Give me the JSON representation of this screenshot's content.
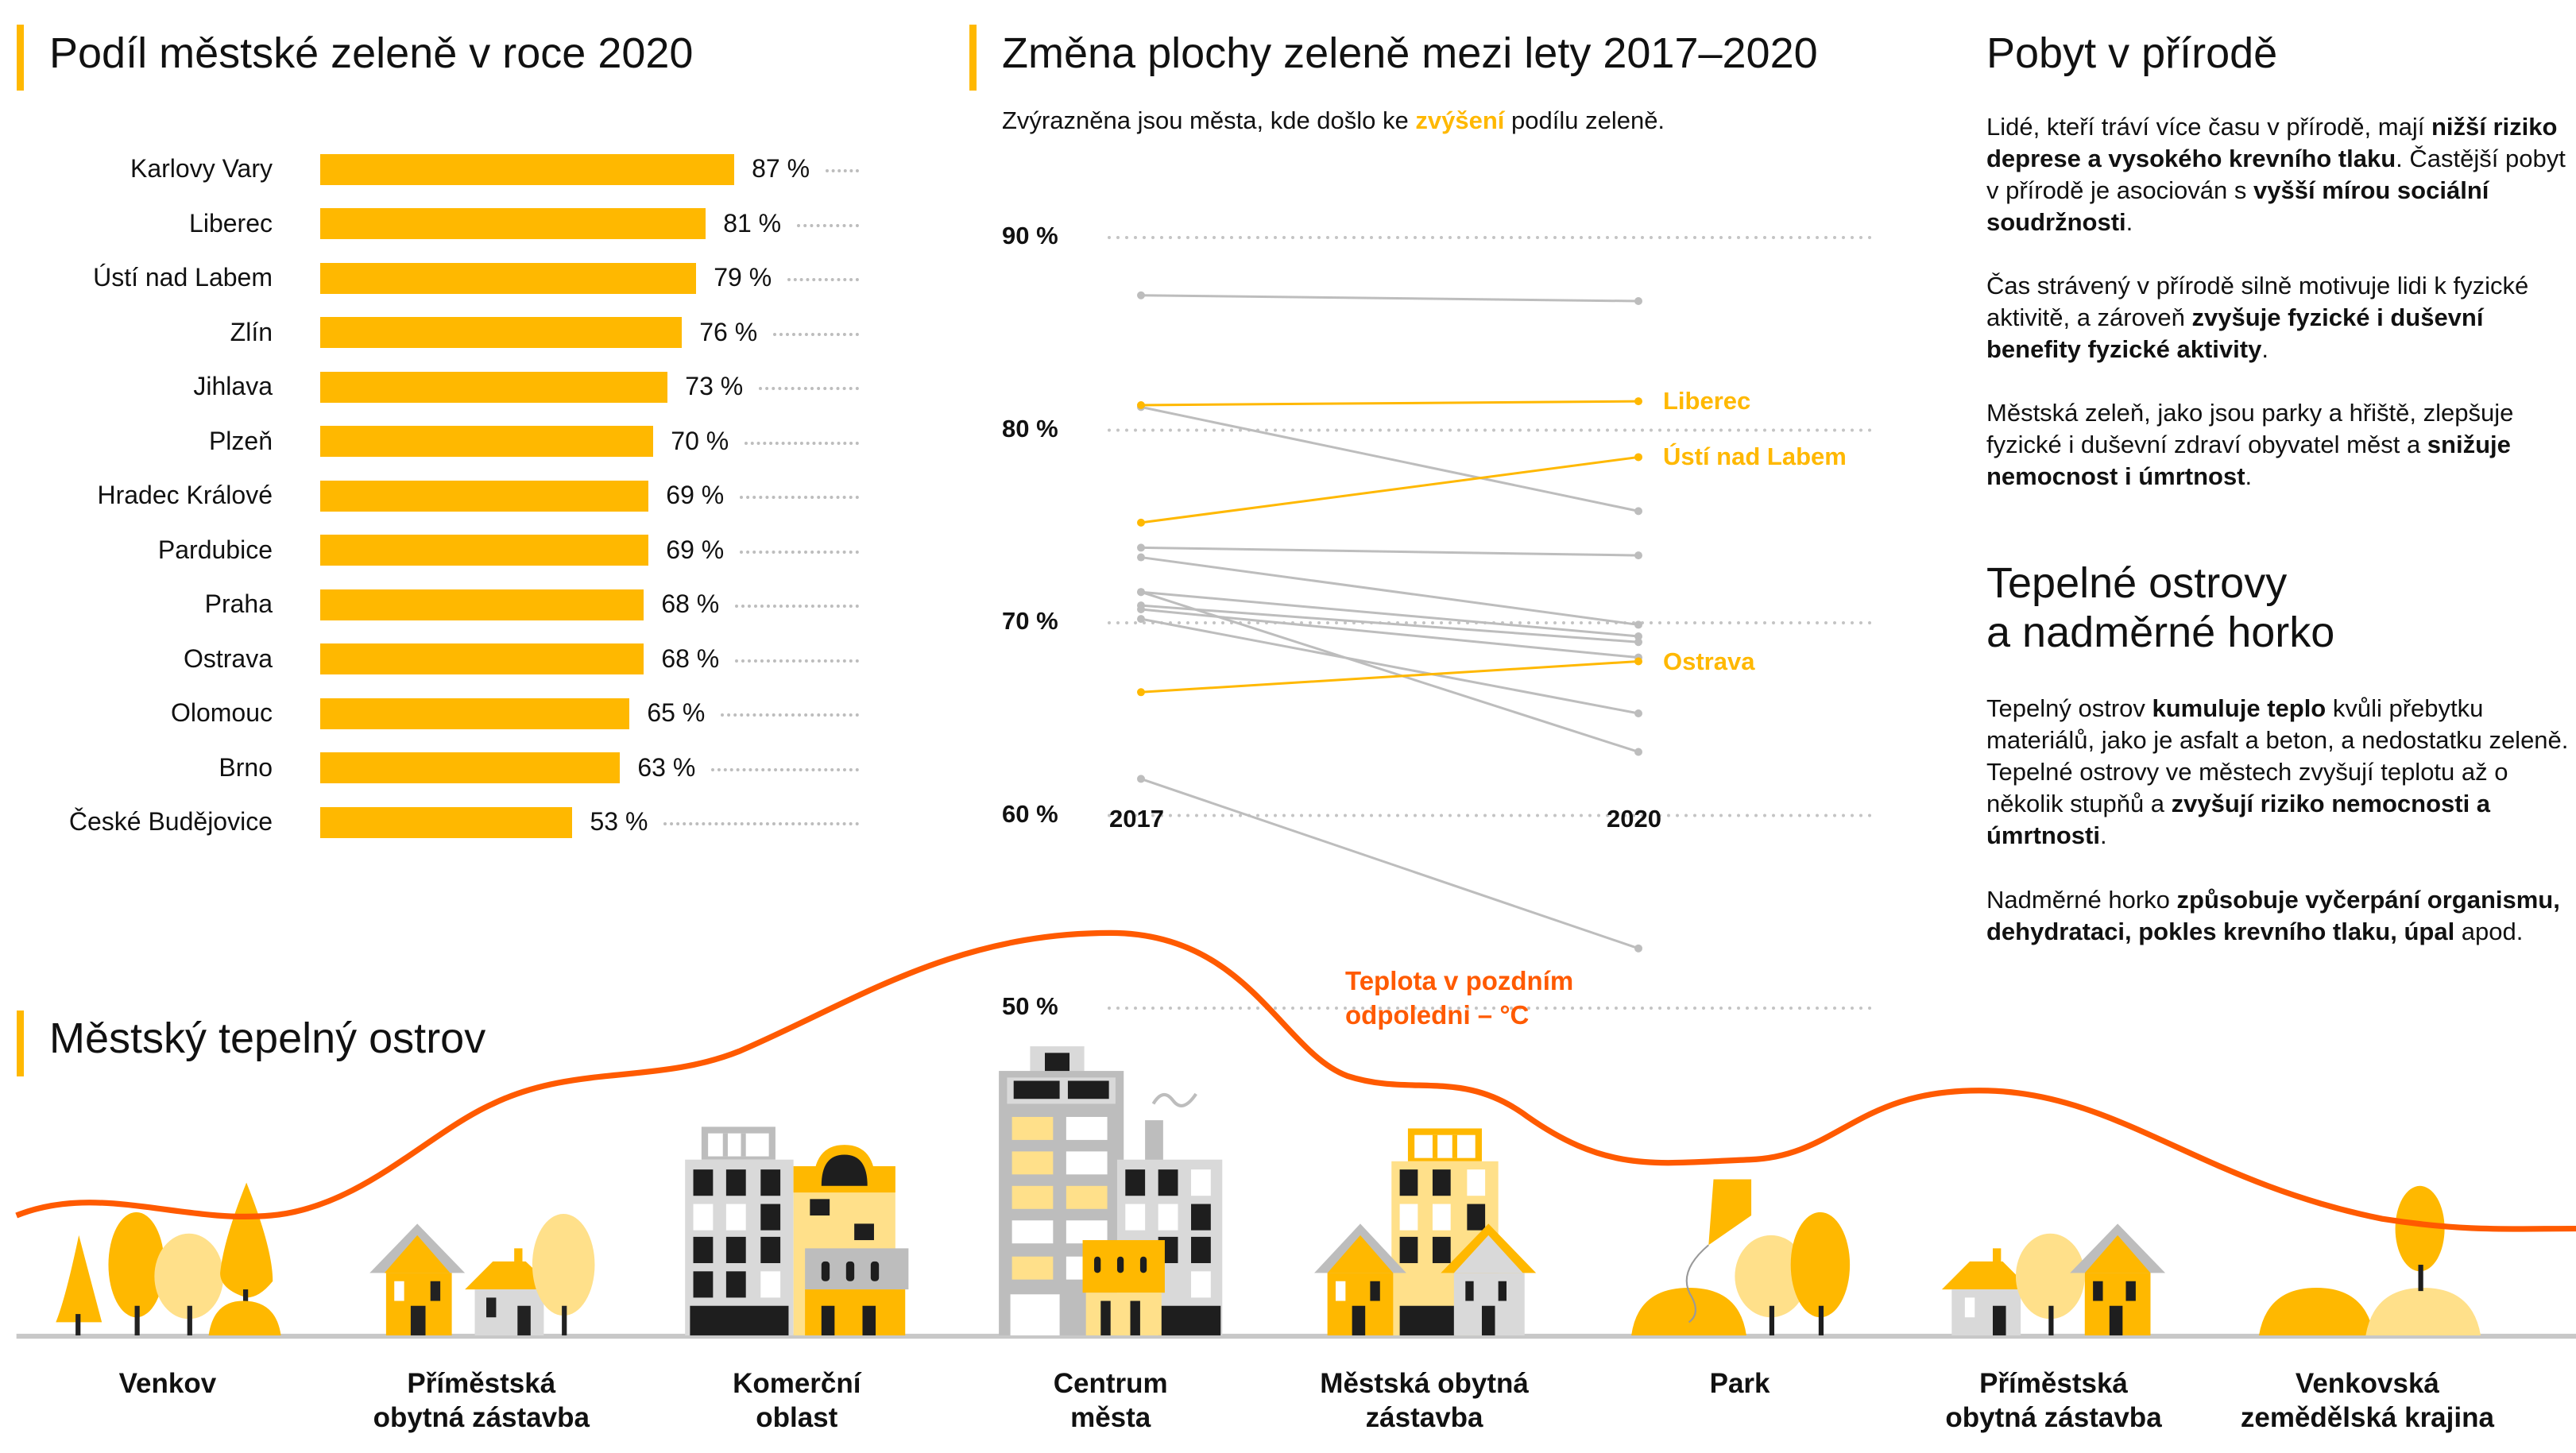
{
  "colors": {
    "accent": "#FFB800",
    "accent_light": "#FFE08A",
    "orange": "#FF5A00",
    "gray": "#BDBDBD",
    "dark": "#1E1E1E"
  },
  "bar_section": {
    "title": "Podíl městské zeleně v roce 2020"
  },
  "slope_section": {
    "title": "Změna plochy zeleně mezi lety 2017–2020",
    "subtitle_before": "Zvýrazněna jsou města, kde došlo ke ",
    "subtitle_highlight": "zvýšení",
    "subtitle_after": " podílu zeleně."
  },
  "chart_data": [
    {
      "type": "bar",
      "orientation": "horizontal",
      "title": "Podíl městské zeleně v roce 2020",
      "categories": [
        "Karlovy Vary",
        "Liberec",
        "Ústí nad Labem",
        "Zlín",
        "Jihlava",
        "Plzeň",
        "Hradec Králové",
        "Pardubice",
        "Praha",
        "Ostrava",
        "Olomouc",
        "Brno",
        "České Budějovice"
      ],
      "values": [
        87,
        81,
        79,
        76,
        73,
        70,
        69,
        69,
        68,
        68,
        65,
        63,
        53
      ],
      "value_labels": [
        "87 %",
        "81 %",
        "79 %",
        "76 %",
        "73 %",
        "70 %",
        "69 %",
        "69 %",
        "68 %",
        "68 %",
        "65 %",
        "63 %",
        "53 %"
      ],
      "xlim": [
        0,
        100
      ]
    },
    {
      "type": "line",
      "subtype": "slope",
      "title": "Změna plochy zeleně mezi lety 2017–2020",
      "x": [
        "2017",
        "2020"
      ],
      "ylim": [
        50,
        90
      ],
      "yticks": [
        "90 %",
        "80 %",
        "70 %",
        "60 %",
        "50 %"
      ],
      "ytick_values": [
        90,
        80,
        70,
        60,
        50
      ],
      "grid": true,
      "series": [
        {
          "values": [
            87.0,
            86.7
          ],
          "highlight": false
        },
        {
          "name": "Liberec",
          "values": [
            81.3,
            81.5
          ],
          "highlight": true
        },
        {
          "values": [
            81.2,
            75.8
          ],
          "highlight": false
        },
        {
          "name": "Ústí nad Labem",
          "values": [
            75.2,
            78.6
          ],
          "highlight": true
        },
        {
          "values": [
            73.9,
            73.5
          ],
          "highlight": false
        },
        {
          "values": [
            73.4,
            69.9
          ],
          "highlight": false
        },
        {
          "values": [
            71.6,
            69.3
          ],
          "highlight": false
        },
        {
          "values": [
            70.9,
            69.0
          ],
          "highlight": false
        },
        {
          "values": [
            70.7,
            68.2
          ],
          "highlight": false
        },
        {
          "values": [
            70.2,
            65.3
          ],
          "highlight": false
        },
        {
          "values": [
            71.6,
            63.3
          ],
          "highlight": false
        },
        {
          "name": "Ostrava",
          "values": [
            66.4,
            68.0
          ],
          "highlight": true
        },
        {
          "values": [
            61.9,
            53.1
          ],
          "highlight": false
        }
      ]
    }
  ],
  "right": {
    "title1": "Pobyt v přírodě",
    "paras1": [
      [
        {
          "t": "Lidé, kteří tráví více času v přírodě, mají "
        },
        {
          "t": "nižší riziko deprese a vysokého krevního tlaku",
          "b": true
        },
        {
          "t": ". Častější pobyt v přírodě je asociován s "
        },
        {
          "t": "vyšší mírou sociální soudržnosti",
          "b": true
        },
        {
          "t": "."
        }
      ],
      [
        {
          "t": "Čas strávený v přírodě silně motivuje lidi k fyzické aktivitě, a zároveň "
        },
        {
          "t": "zvyšuje fyzické i duševní benefity fyzické aktivity",
          "b": true
        },
        {
          "t": "."
        }
      ],
      [
        {
          "t": "Městská zeleň, jako jsou parky a hřiště, zlepšuje fyzické i duševní zdraví obyvatel měst a "
        },
        {
          "t": "snižuje nemocnost i úmrtnost",
          "b": true
        },
        {
          "t": "."
        }
      ]
    ],
    "title2_line1": "Tepelné ostrovy",
    "title2_line2": "a nadměrné horko",
    "paras2": [
      [
        {
          "t": "Tepelný ostrov "
        },
        {
          "t": "kumuluje teplo",
          "b": true
        },
        {
          "t": " kvůli přebytku materiálů, jako je asfalt a beton, a nedostatku zeleně. Tepelné ostrovy ve městech zvyšují teplotu až o několik stupňů a "
        },
        {
          "t": "zvyšují riziko nemocnosti a úmrtnosti",
          "b": true
        },
        {
          "t": "."
        }
      ],
      [
        {
          "t": "Nadměrné horko "
        },
        {
          "t": "způsobuje vyčerpání organismu, dehydrataci, pokles krevního tlaku, úpal",
          "b": true
        },
        {
          "t": " apod."
        }
      ]
    ]
  },
  "heat": {
    "title": "Městský tepelný ostrov",
    "curve_label_line1": "Teplota v pozdním",
    "curve_label_line2": "odpoledni – °C",
    "zones": [
      {
        "l1": "Venkov",
        "l2": ""
      },
      {
        "l1": "Příměstská",
        "l2": "obytná zástavba"
      },
      {
        "l1": "Komerční",
        "l2": "oblast"
      },
      {
        "l1": "Centrum",
        "l2": "města"
      },
      {
        "l1": "Městská obytná",
        "l2": "zástavba"
      },
      {
        "l1": "Park",
        "l2": ""
      },
      {
        "l1": "Příměstská",
        "l2": "obytná zástavba"
      },
      {
        "l1": "Venkovská",
        "l2": "zemědělská krajina"
      }
    ]
  }
}
